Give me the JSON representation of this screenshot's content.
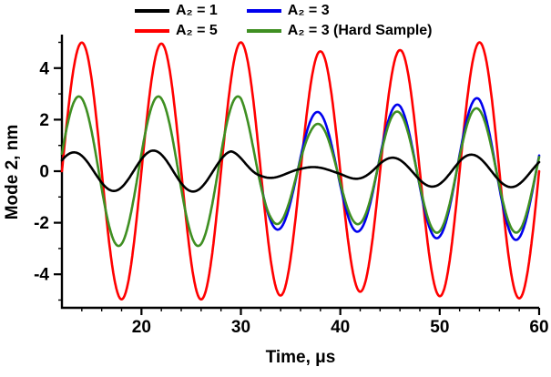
{
  "chart_data": {
    "type": "line",
    "title": "",
    "xlabel": "Time, μs",
    "ylabel": "Mode 2, nm",
    "xlim": [
      12,
      60
    ],
    "ylim": [
      -5.3,
      5.3
    ],
    "x_major_ticks": [
      20,
      30,
      40,
      50,
      60
    ],
    "x_tick_labels": [
      "20",
      "30",
      "40",
      "50",
      "60"
    ],
    "x_minor_step": 2,
    "y_major_ticks": [
      -4,
      -2,
      0,
      2,
      4
    ],
    "y_tick_labels": [
      "-4",
      "-2",
      "0",
      "2",
      "4"
    ],
    "y_minor_step": 1,
    "grid": false,
    "legend_position": "top-center",
    "waveform": "cosine",
    "period_us": 8,
    "draw_order": [
      1,
      2,
      3,
      0
    ],
    "series": [
      {
        "name": "A₂ = 1",
        "color": "#000000",
        "phase_peak_time_us": 13.2,
        "t_start": 12,
        "amplitude_envelope": [
          [
            12,
            0.72
          ],
          [
            21,
            0.8
          ],
          [
            29,
            0.78
          ],
          [
            32,
            0.3
          ],
          [
            36,
            0.15
          ],
          [
            40,
            0.18
          ],
          [
            44,
            0.5
          ],
          [
            52,
            0.65
          ],
          [
            60,
            0.6
          ]
        ]
      },
      {
        "name": "A₂ = 5",
        "color": "#ff0000",
        "phase_peak_time_us": 14.0,
        "t_start": 12,
        "amplitude_envelope": [
          [
            12,
            5.0
          ],
          [
            22,
            4.95
          ],
          [
            30,
            5.0
          ],
          [
            38,
            4.65
          ],
          [
            46,
            4.7
          ],
          [
            54,
            5.0
          ],
          [
            60,
            4.9
          ]
        ]
      },
      {
        "name": "A₂ = 3",
        "color": "#0000ee",
        "phase_peak_time_us": 13.7,
        "t_start": 31.7,
        "amplitude_envelope": [
          [
            31.7,
            2.25
          ],
          [
            34,
            2.27
          ],
          [
            38,
            2.3
          ],
          [
            42,
            2.35
          ],
          [
            46,
            2.6
          ],
          [
            50,
            2.6
          ],
          [
            54,
            2.85
          ],
          [
            58,
            2.65
          ],
          [
            60,
            2.6
          ]
        ]
      },
      {
        "name": "A₂ = 3 (Hard Sample)",
        "color": "#3f8f22",
        "phase_peak_time_us": 13.7,
        "t_start": 12,
        "amplitude_envelope": [
          [
            12,
            2.9
          ],
          [
            30,
            2.9
          ],
          [
            33,
            2.1
          ],
          [
            37,
            1.8
          ],
          [
            41,
            2.0
          ],
          [
            45,
            2.3
          ],
          [
            53,
            2.45
          ],
          [
            60,
            2.35
          ]
        ]
      }
    ],
    "legend": {
      "columns": [
        [
          0,
          1
        ],
        [
          2,
          3
        ]
      ]
    }
  }
}
